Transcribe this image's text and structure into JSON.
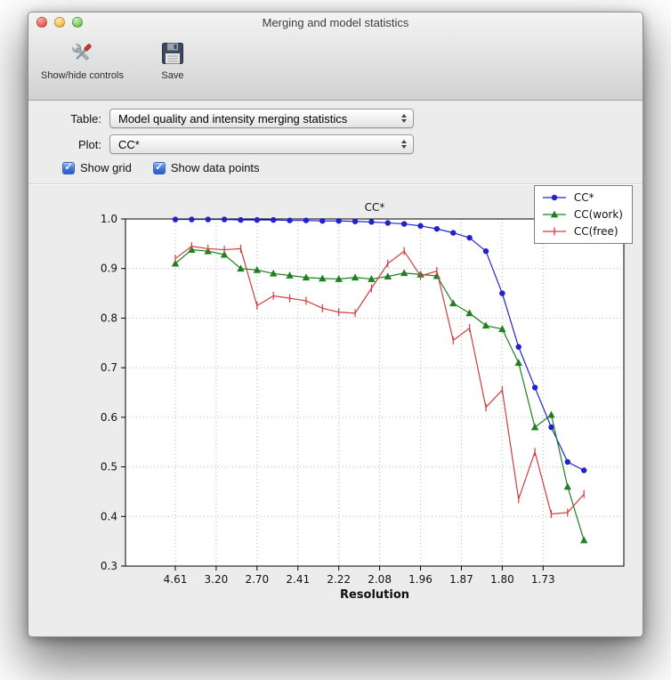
{
  "window": {
    "title": "Merging and model statistics"
  },
  "toolbar": {
    "items": [
      {
        "label": "Show/hide controls",
        "icon": "tools-icon"
      },
      {
        "label": "Save",
        "icon": "save-icon"
      }
    ]
  },
  "controls": {
    "table_label": "Table:",
    "table_value": "Model quality and intensity merging statistics",
    "plot_label": "Plot:",
    "plot_value": "CC*",
    "checkboxes": [
      {
        "label": "Show grid",
        "checked": true
      },
      {
        "label": "Show data points",
        "checked": true
      }
    ]
  },
  "chart_data": {
    "type": "line",
    "title": "CC*",
    "xlabel": "Resolution",
    "ylabel": "",
    "ylim": [
      0.3,
      1.0
    ],
    "yticks": [
      0.3,
      0.4,
      0.5,
      0.6,
      0.7,
      0.8,
      0.9,
      1.0
    ],
    "xtick_labels": [
      "4.61",
      "3.20",
      "2.70",
      "2.41",
      "2.22",
      "2.08",
      "1.96",
      "1.87",
      "1.80",
      "1.73"
    ],
    "grid": true,
    "show_data_points": true,
    "legend_position": "upper right",
    "series": [
      {
        "name": "CC*",
        "color": "#2222cc",
        "marker": "circle",
        "values": [
          0.999,
          0.999,
          0.999,
          0.999,
          0.998,
          0.998,
          0.998,
          0.997,
          0.997,
          0.996,
          0.996,
          0.995,
          0.994,
          0.992,
          0.99,
          0.986,
          0.98,
          0.972,
          0.962,
          0.935,
          0.85,
          0.742,
          0.66,
          0.58,
          0.51,
          0.493
        ]
      },
      {
        "name": "CC(work)",
        "color": "#1e8022",
        "marker": "triangle",
        "values": [
          0.91,
          0.938,
          0.935,
          0.928,
          0.9,
          0.897,
          0.89,
          0.886,
          0.882,
          0.88,
          0.879,
          0.882,
          0.879,
          0.884,
          0.891,
          0.888,
          0.885,
          0.83,
          0.81,
          0.785,
          0.778,
          0.71,
          0.58,
          0.605,
          0.46,
          0.352
        ]
      },
      {
        "name": "CC(free)",
        "color": "#cf3d3d",
        "marker": "vline",
        "values": [
          0.92,
          0.945,
          0.94,
          0.938,
          0.94,
          0.825,
          0.845,
          0.84,
          0.835,
          0.82,
          0.812,
          0.81,
          0.86,
          0.91,
          0.935,
          0.885,
          0.895,
          0.755,
          0.78,
          0.62,
          0.655,
          0.435,
          0.53,
          0.405,
          0.408,
          0.445
        ]
      }
    ]
  }
}
